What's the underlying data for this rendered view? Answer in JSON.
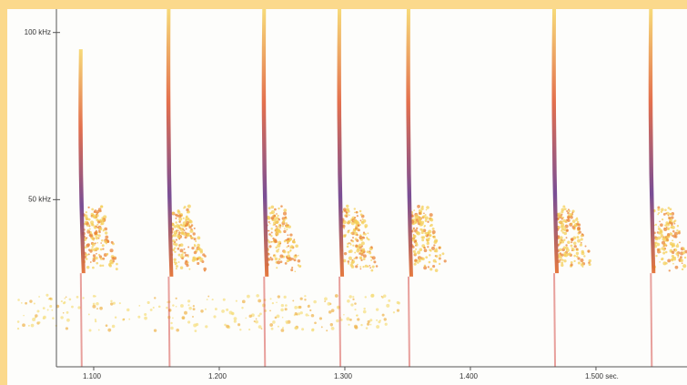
{
  "chart_data": {
    "type": "spectrogram",
    "xlim": [
      1.0703,
      1.5725
    ],
    "ylim": [
      0,
      107
    ],
    "xticks": [
      {
        "value": 1.1,
        "label": "1.100"
      },
      {
        "value": 1.2,
        "label": "1.200"
      },
      {
        "value": 1.3,
        "label": "1.300"
      },
      {
        "value": 1.4,
        "label": "1.400"
      },
      {
        "value": 1.5,
        "label": "1.500 sec."
      }
    ],
    "yticks": [
      {
        "value": 50,
        "label": "50 kHz"
      },
      {
        "value": 100,
        "label": "100 kHz"
      }
    ],
    "calls": {
      "x": [
        1.089,
        1.159,
        1.235,
        1.295,
        1.35,
        1.466,
        1.543
      ],
      "high": [
        95,
        107,
        107,
        107,
        107,
        107,
        107
      ],
      "low": [
        28,
        27,
        27,
        27,
        27,
        28,
        28
      ]
    },
    "color": "#d0302a"
  }
}
